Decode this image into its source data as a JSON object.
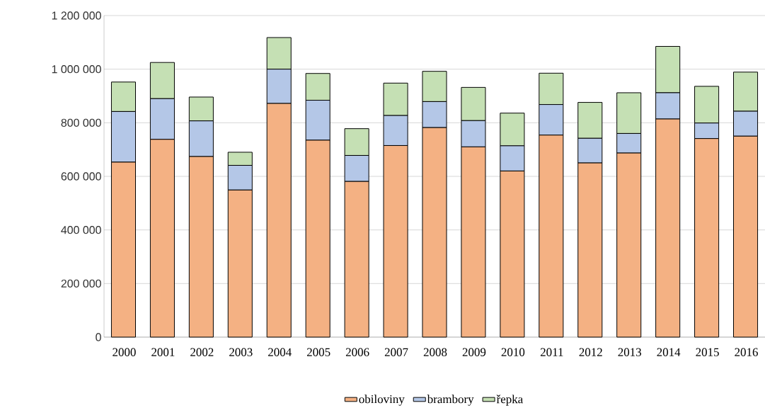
{
  "chart_data": {
    "type": "bar",
    "stacked": true,
    "categories": [
      "2000",
      "2001",
      "2002",
      "2003",
      "2004",
      "2005",
      "2006",
      "2007",
      "2008",
      "2009",
      "2010",
      "2011",
      "2012",
      "2013",
      "2014",
      "2015",
      "2016"
    ],
    "series": [
      {
        "name": "obiloviny",
        "color": "#f4b183",
        "values": [
          653000,
          738000,
          674000,
          549000,
          872000,
          735000,
          581000,
          715000,
          782000,
          710000,
          620000,
          754000,
          650000,
          687000,
          814000,
          741000,
          750000
        ]
      },
      {
        "name": "brambory",
        "color": "#b4c7e7",
        "values": [
          189000,
          152000,
          133000,
          92000,
          128000,
          149000,
          97000,
          112000,
          97000,
          98000,
          94000,
          114000,
          92000,
          73000,
          98000,
          58000,
          93000
        ]
      },
      {
        "name": "řepka",
        "color": "#c5e0b4",
        "values": [
          110000,
          135000,
          89000,
          49000,
          118000,
          100000,
          100000,
          121000,
          113000,
          124000,
          122000,
          117000,
          134000,
          152000,
          173000,
          137000,
          146000
        ]
      }
    ],
    "ylim": [
      0,
      1200000
    ],
    "yticks": [
      0,
      {
        "value": 200000,
        "label": "200 000"
      },
      {
        "value": 400000,
        "label": "400 000"
      },
      {
        "value": 600000,
        "label": "600 000"
      },
      {
        "value": 800000,
        "label": "800 000"
      },
      {
        "value": 1000000,
        "label": "1 000 000"
      },
      {
        "value": 1200000,
        "label": "1 200 000"
      }
    ],
    "grid": "y",
    "legend": "bottom"
  }
}
